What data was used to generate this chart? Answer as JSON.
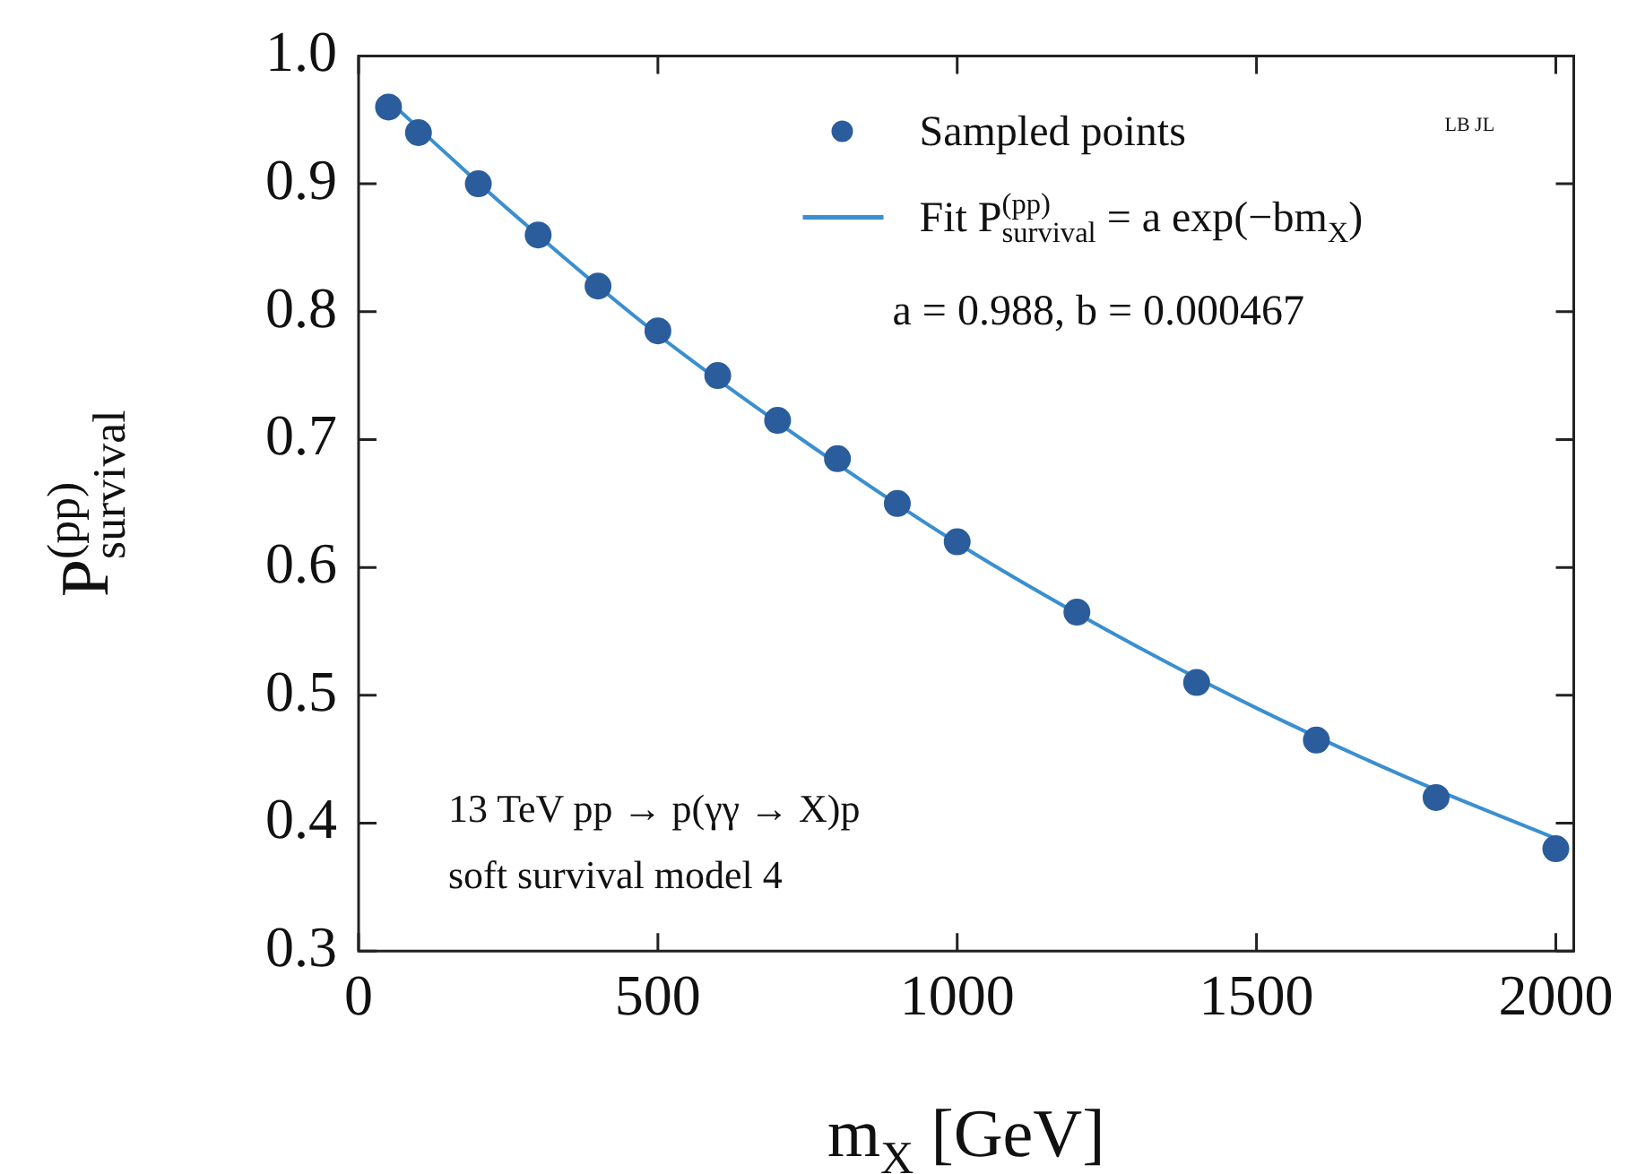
{
  "chart_data": {
    "type": "scatter",
    "xlabel": "m$_{X}$ [GeV]",
    "ylabel": "P$_{survival}$$^{(pp)}$",
    "series": [
      {
        "name": "Sampled points",
        "marker": "circle",
        "color": "#2b5d9c",
        "x": [
          50,
          100,
          200,
          300,
          400,
          500,
          600,
          700,
          800,
          900,
          1000,
          1200,
          1400,
          1600,
          1800,
          2000
        ],
        "values": [
          0.96,
          0.94,
          0.9,
          0.86,
          0.82,
          0.785,
          0.75,
          0.715,
          0.685,
          0.65,
          0.62,
          0.565,
          0.51,
          0.465,
          0.42,
          0.38
        ]
      },
      {
        "name": "Fit P$_{survival}$$^{(pp)}$ = a exp(−bm$_{X}$)",
        "type": "line",
        "marker": "none",
        "color": "#3a8fd0",
        "x": [
          50,
          250,
          500,
          750,
          1000,
          1250,
          1500,
          1750,
          2000
        ],
        "values": [
          0.965,
          0.88,
          0.782,
          0.697,
          0.619,
          0.551,
          0.49,
          0.436,
          0.388
        ]
      }
    ],
    "xlim": [
      0,
      2030
    ],
    "xticks": [
      0,
      500,
      1000,
      1500,
      2000
    ],
    "ylim": [
      0.3,
      1.0
    ],
    "yticks": [
      0.3,
      0.4,
      0.5,
      0.6,
      0.7,
      0.8,
      0.9,
      {
        "value": 1.0,
        "label": "1.0"
      }
    ],
    "annotations": [
      "a = 0.988, b = 0.000467",
      "13 TeV pp → p(γγ → X)p",
      "soft survival model 4",
      "LB JL"
    ],
    "line_style": "solid",
    "legend": "top right",
    "grid": false
  }
}
